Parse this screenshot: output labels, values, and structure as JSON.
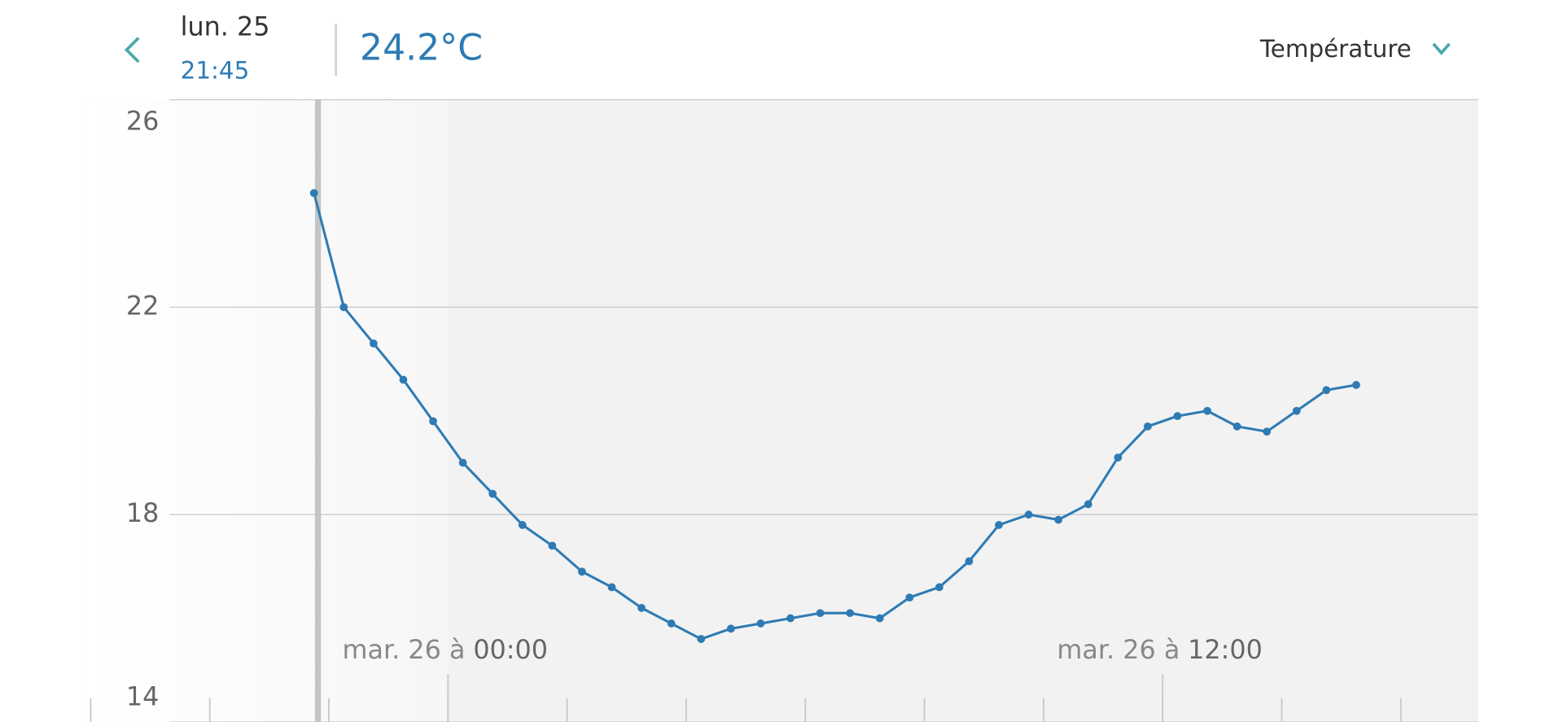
{
  "header": {
    "date": "lun. 25",
    "time": "21:45",
    "reading": "24.2°C",
    "metric": "Température"
  },
  "chart_data": {
    "type": "line",
    "x": [
      -2.25,
      -1.75,
      -1.25,
      -0.75,
      -0.25,
      0.25,
      0.75,
      1.25,
      1.75,
      2.25,
      2.75,
      3.25,
      3.75,
      4.25,
      4.75,
      5.25,
      5.75,
      6.25,
      6.75,
      7.25,
      7.75,
      8.25,
      8.75,
      9.25,
      9.75,
      10.25,
      10.75,
      11.25,
      11.75,
      12.25,
      12.75,
      13.25,
      13.75,
      14.25,
      14.75,
      15.25
    ],
    "series": [
      {
        "color": "#2e7bb4",
        "values": [
          24.2,
          22.0,
          21.3,
          20.6,
          19.8,
          19.0,
          18.4,
          17.8,
          17.4,
          16.9,
          16.6,
          16.2,
          15.9,
          15.6,
          15.8,
          15.9,
          16.0,
          16.1,
          16.1,
          16.0,
          16.4,
          16.6,
          17.1,
          17.8,
          18.0,
          17.9,
          18.2,
          19.1,
          19.7,
          19.9,
          20.0,
          19.7,
          19.6,
          20.0,
          20.4,
          20.5
        ]
      }
    ],
    "ylim": [
      14,
      26
    ],
    "yticks": [
      14,
      18,
      22,
      26
    ],
    "xlim": [
      -6.1,
      17.3
    ],
    "xticks": [
      -6,
      -4,
      -2,
      0,
      2,
      4,
      6,
      8,
      10,
      12,
      14,
      16
    ],
    "x_labels": [
      {
        "value": 0,
        "date": "mar. 26 à",
        "time": "00:00"
      },
      {
        "value": 12,
        "date": "mar. 26 à",
        "time": "12:00"
      }
    ],
    "grid": true
  }
}
